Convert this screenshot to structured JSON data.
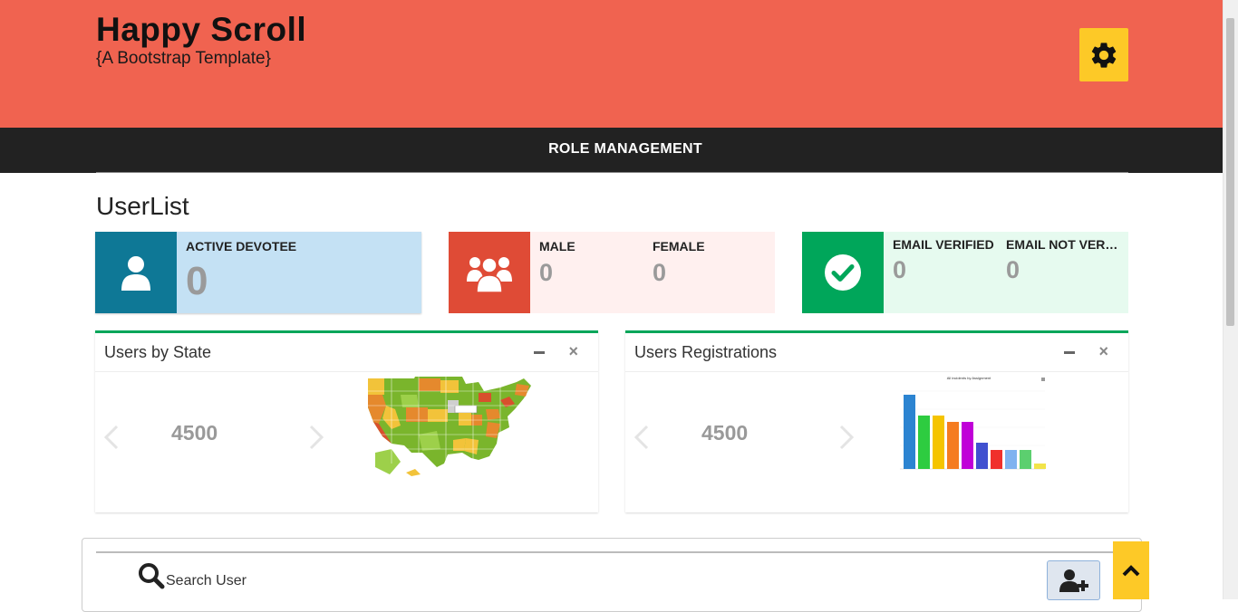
{
  "header": {
    "title": "Happy Scroll",
    "subtitle": "{A Bootstrap Template}"
  },
  "nav": {
    "item": "ROLE MANAGEMENT"
  },
  "page": {
    "title": "UserList"
  },
  "stats": {
    "active": {
      "label": "ACTIVE DEVOTEE",
      "value": "0"
    },
    "male": {
      "label": "MALE",
      "value": "0"
    },
    "female": {
      "label": "FEMALE",
      "value": "0"
    },
    "email_verified": {
      "label": "EMAIL VERIFIED",
      "value": "0"
    },
    "email_not_verified": {
      "label": "EMAIL NOT VERIFIED",
      "value": "0"
    }
  },
  "panels": {
    "state": {
      "title": "Users by State",
      "number": "4500",
      "close": "×"
    },
    "registrations": {
      "title": "Users Registrations",
      "number": "4500",
      "close": "×",
      "mini_chart_title": "All incidents by Assignment"
    }
  },
  "search": {
    "placeholder": "Search User"
  },
  "colors": {
    "header": "#f06350",
    "navbar": "#222222",
    "accent_yellow": "#fdc927",
    "active_icon": "#0e7896",
    "gender_icon": "#df4b36",
    "email_icon": "#00a65a",
    "panel_border": "#00a65a"
  },
  "icons": {
    "gear": "gear-icon",
    "user": "user-icon",
    "users": "users-icon",
    "check": "check-circle-icon",
    "search": "search-icon",
    "add_user": "user-plus-icon",
    "up": "chevron-up-icon"
  }
}
